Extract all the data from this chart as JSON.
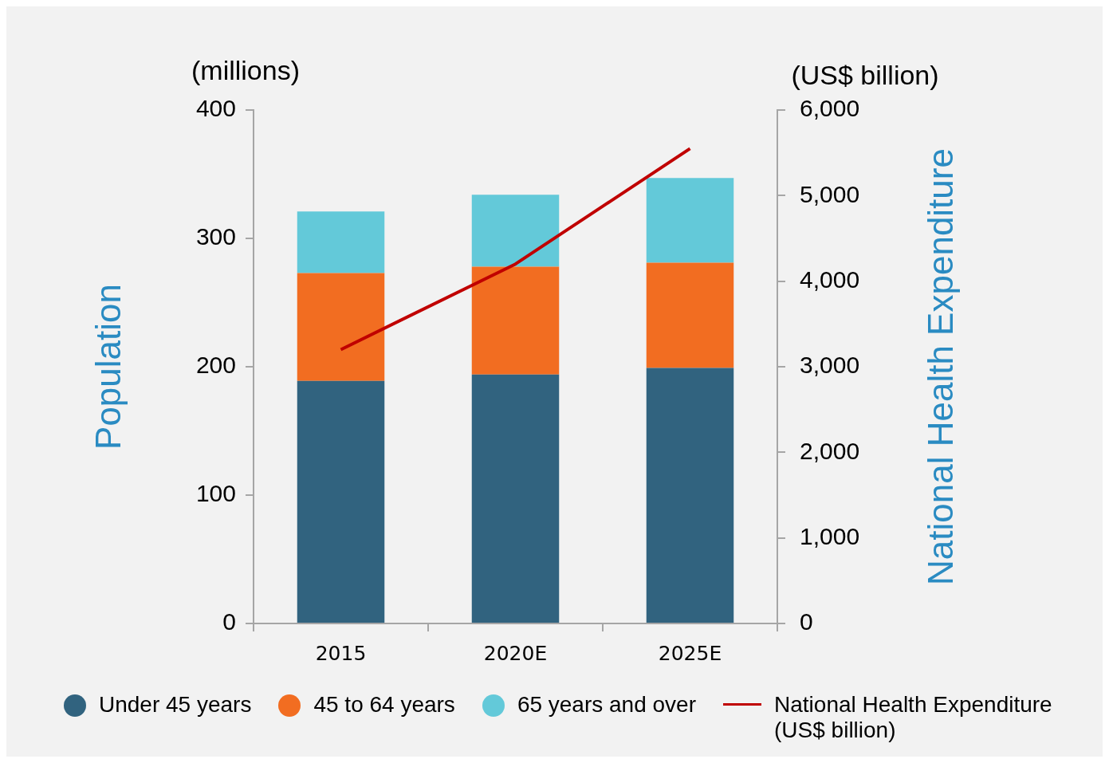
{
  "chart_data": {
    "type": "bar",
    "stacked": true,
    "categories": [
      "2015",
      "2020E",
      "2025E"
    ],
    "ylabel": "Population",
    "y2label": "National Health Expenditure",
    "annotations": [
      "(millions)",
      "(US$ billion)"
    ],
    "ylim": [
      0,
      400
    ],
    "yticks": [
      0,
      100,
      200,
      300,
      400
    ],
    "y2lim": [
      0,
      6000
    ],
    "y2ticks": [
      0,
      {
        "value": 1000,
        "label": "1,000"
      },
      {
        "value": 2000,
        "label": "2,000"
      },
      {
        "value": 3000,
        "label": "3,000"
      },
      {
        "value": 4000,
        "label": "4,000"
      },
      {
        "value": 5000,
        "label": "5,000"
      },
      {
        "value": 6000,
        "label": "6,000"
      }
    ],
    "grid": false,
    "legend": "bottom",
    "series": [
      {
        "name": "Under 45 years",
        "color": "#31637f",
        "values": [
          189,
          194,
          199
        ]
      },
      {
        "name": "45 to 64 years",
        "color": "#f26d21",
        "values": [
          84,
          84,
          82
        ]
      },
      {
        "name": "65 years and over",
        "color": "#63c9d9",
        "values": [
          48,
          56,
          66
        ]
      },
      {
        "name": "National Health Expenditure (US$ billion)",
        "type": "line",
        "axis": "y2",
        "color": "#c00000",
        "values": [
          3200,
          4200,
          5550
        ]
      }
    ]
  }
}
